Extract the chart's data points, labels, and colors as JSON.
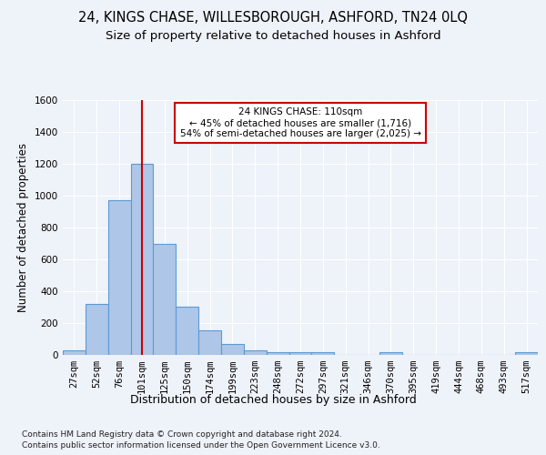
{
  "title1": "24, KINGS CHASE, WILLESBOROUGH, ASHFORD, TN24 0LQ",
  "title2": "Size of property relative to detached houses in Ashford",
  "xlabel": "Distribution of detached houses by size in Ashford",
  "ylabel": "Number of detached properties",
  "footnote1": "Contains HM Land Registry data © Crown copyright and database right 2024.",
  "footnote2": "Contains public sector information licensed under the Open Government Licence v3.0.",
  "bar_labels": [
    "27sqm",
    "52sqm",
    "76sqm",
    "101sqm",
    "125sqm",
    "150sqm",
    "174sqm",
    "199sqm",
    "223sqm",
    "248sqm",
    "272sqm",
    "297sqm",
    "321sqm",
    "346sqm",
    "370sqm",
    "395sqm",
    "419sqm",
    "444sqm",
    "468sqm",
    "493sqm",
    "517sqm"
  ],
  "bar_values": [
    30,
    320,
    970,
    1200,
    700,
    305,
    155,
    70,
    30,
    20,
    15,
    15,
    0,
    0,
    15,
    0,
    0,
    0,
    0,
    0,
    15
  ],
  "bar_color": "#aec6e8",
  "bar_edgecolor": "#5b9bd5",
  "bar_linewidth": 0.8,
  "property_bin_index": 3,
  "vline_color": "#cc0000",
  "vline_linewidth": 1.5,
  "annotation_text": "24 KINGS CHASE: 110sqm\n← 45% of detached houses are smaller (1,716)\n54% of semi-detached houses are larger (2,025) →",
  "annotation_box_edgecolor": "#cc0000",
  "annotation_box_facecolor": "#ffffff",
  "ylim": [
    0,
    1600
  ],
  "background_color": "#eef2f9",
  "axes_background": "#eef2f9",
  "grid_color": "#ffffff",
  "title1_fontsize": 10.5,
  "title2_fontsize": 9.5,
  "xlabel_fontsize": 9,
  "ylabel_fontsize": 8.5,
  "tick_fontsize": 7.5,
  "annotation_fontsize": 7.5,
  "footnote_fontsize": 6.5
}
